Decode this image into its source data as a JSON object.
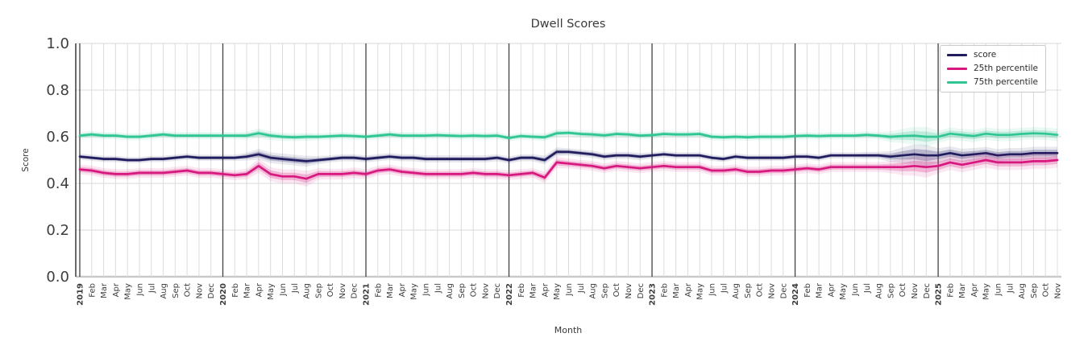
{
  "title": "Dwell Scores",
  "style": {
    "grid_color": "#dcdcdc",
    "hgrid_color": "#d9d9d9",
    "year_line_color": "#424242",
    "axis_color": "#3a3a3a",
    "bottom_spine_color": "#c9c9c9",
    "text_color": "#3d3d3d",
    "legend_border": "#cbcbcb"
  },
  "chart_data": {
    "type": "line",
    "title": "Dwell Scores",
    "xlabel": "Month",
    "ylabel": "Score",
    "ylim": [
      0.0,
      1.0
    ],
    "yticks": [
      0.0,
      0.2,
      0.4,
      0.6,
      0.8,
      1.0
    ],
    "grid": "on",
    "legend_position": "upper right",
    "categories": [
      "2019",
      "Feb",
      "Mar",
      "Apr",
      "May",
      "Jun",
      "Jul",
      "Aug",
      "Sep",
      "Oct",
      "Nov",
      "Dec",
      "2020",
      "Feb",
      "Mar",
      "Apr",
      "May",
      "Jun",
      "Jul",
      "Aug",
      "Sep",
      "Oct",
      "Nov",
      "Dec",
      "2021",
      "Feb",
      "Mar",
      "Apr",
      "May",
      "Jun",
      "Jul",
      "Aug",
      "Sep",
      "Oct",
      "Nov",
      "Dec",
      "2022",
      "Feb",
      "Mar",
      "Apr",
      "May",
      "Jun",
      "Jul",
      "Aug",
      "Sep",
      "Oct",
      "Nov",
      "Dec",
      "2023",
      "Feb",
      "Mar",
      "Apr",
      "May",
      "Jun",
      "Jul",
      "Aug",
      "Sep",
      "Oct",
      "Nov",
      "Dec",
      "2024",
      "Feb",
      "Mar",
      "Apr",
      "May",
      "Jun",
      "Jul",
      "Aug",
      "Sep",
      "Oct",
      "Nov",
      "Dec",
      "2025",
      "Feb",
      "Mar",
      "Apr",
      "May",
      "Jun",
      "Jul",
      "Aug",
      "Sep",
      "Oct",
      "Nov"
    ],
    "series": [
      {
        "name": "score",
        "color": "#201c5e",
        "values": [
          0.515,
          0.51,
          0.505,
          0.505,
          0.5,
          0.5,
          0.505,
          0.505,
          0.51,
          0.515,
          0.51,
          0.51,
          0.51,
          0.51,
          0.515,
          0.525,
          0.51,
          0.505,
          0.5,
          0.495,
          0.5,
          0.505,
          0.51,
          0.51,
          0.505,
          0.51,
          0.515,
          0.51,
          0.51,
          0.505,
          0.505,
          0.505,
          0.505,
          0.505,
          0.505,
          0.51,
          0.5,
          0.51,
          0.51,
          0.5,
          0.535,
          0.535,
          0.53,
          0.525,
          0.515,
          0.52,
          0.52,
          0.515,
          0.52,
          0.525,
          0.52,
          0.52,
          0.52,
          0.51,
          0.505,
          0.515,
          0.51,
          0.51,
          0.51,
          0.51,
          0.515,
          0.515,
          0.51,
          0.52,
          0.52,
          0.52,
          0.52,
          0.52,
          0.515,
          0.52,
          0.525,
          0.52,
          0.52,
          0.53,
          0.52,
          0.525,
          0.53,
          0.52,
          0.525,
          0.525,
          0.53,
          0.53,
          0.53
        ],
        "band": [
          0.007,
          0.007,
          0.007,
          0.007,
          0.007,
          0.007,
          0.007,
          0.007,
          0.007,
          0.007,
          0.007,
          0.007,
          0.007,
          0.007,
          0.009,
          0.012,
          0.012,
          0.012,
          0.012,
          0.012,
          0.009,
          0.008,
          0.008,
          0.008,
          0.008,
          0.008,
          0.008,
          0.008,
          0.008,
          0.008,
          0.008,
          0.008,
          0.008,
          0.008,
          0.008,
          0.008,
          0.008,
          0.008,
          0.008,
          0.01,
          0.01,
          0.008,
          0.008,
          0.008,
          0.008,
          0.008,
          0.008,
          0.008,
          0.007,
          0.007,
          0.007,
          0.007,
          0.007,
          0.007,
          0.007,
          0.007,
          0.007,
          0.007,
          0.007,
          0.007,
          0.007,
          0.007,
          0.007,
          0.007,
          0.007,
          0.007,
          0.008,
          0.008,
          0.012,
          0.018,
          0.022,
          0.024,
          0.016,
          0.015,
          0.015,
          0.014,
          0.014,
          0.014,
          0.014,
          0.014,
          0.014,
          0.014,
          0.014
        ]
      },
      {
        "name": "25th percentile",
        "color": "#d6187f",
        "values": [
          0.46,
          0.455,
          0.445,
          0.44,
          0.44,
          0.445,
          0.445,
          0.445,
          0.45,
          0.455,
          0.445,
          0.445,
          0.44,
          0.435,
          0.44,
          0.475,
          0.44,
          0.43,
          0.43,
          0.42,
          0.44,
          0.44,
          0.44,
          0.445,
          0.44,
          0.455,
          0.46,
          0.45,
          0.445,
          0.44,
          0.44,
          0.44,
          0.44,
          0.445,
          0.44,
          0.44,
          0.435,
          0.44,
          0.445,
          0.425,
          0.49,
          0.485,
          0.48,
          0.475,
          0.465,
          0.475,
          0.47,
          0.465,
          0.47,
          0.475,
          0.47,
          0.47,
          0.47,
          0.455,
          0.455,
          0.46,
          0.45,
          0.45,
          0.455,
          0.455,
          0.46,
          0.465,
          0.46,
          0.47,
          0.47,
          0.47,
          0.47,
          0.47,
          0.47,
          0.47,
          0.475,
          0.47,
          0.475,
          0.49,
          0.48,
          0.49,
          0.5,
          0.49,
          0.49,
          0.49,
          0.495,
          0.495,
          0.5
        ],
        "band": [
          0.011,
          0.011,
          0.011,
          0.011,
          0.011,
          0.011,
          0.011,
          0.011,
          0.011,
          0.011,
          0.011,
          0.011,
          0.011,
          0.011,
          0.012,
          0.016,
          0.016,
          0.016,
          0.016,
          0.018,
          0.013,
          0.012,
          0.012,
          0.012,
          0.011,
          0.011,
          0.011,
          0.011,
          0.011,
          0.011,
          0.011,
          0.011,
          0.011,
          0.011,
          0.011,
          0.011,
          0.011,
          0.011,
          0.011,
          0.013,
          0.013,
          0.011,
          0.011,
          0.011,
          0.011,
          0.011,
          0.011,
          0.011,
          0.011,
          0.011,
          0.011,
          0.011,
          0.011,
          0.011,
          0.011,
          0.011,
          0.011,
          0.011,
          0.011,
          0.011,
          0.011,
          0.011,
          0.011,
          0.011,
          0.011,
          0.011,
          0.011,
          0.011,
          0.014,
          0.018,
          0.022,
          0.024,
          0.017,
          0.017,
          0.017,
          0.017,
          0.017,
          0.017,
          0.017,
          0.017,
          0.017,
          0.017,
          0.017
        ]
      },
      {
        "name": "75th percentile",
        "color": "#2fc694",
        "values": [
          0.605,
          0.61,
          0.605,
          0.605,
          0.6,
          0.6,
          0.605,
          0.61,
          0.605,
          0.605,
          0.605,
          0.605,
          0.605,
          0.605,
          0.605,
          0.615,
          0.605,
          0.6,
          0.598,
          0.6,
          0.6,
          0.602,
          0.605,
          0.603,
          0.6,
          0.605,
          0.61,
          0.605,
          0.605,
          0.605,
          0.607,
          0.605,
          0.603,
          0.605,
          0.603,
          0.605,
          0.595,
          0.603,
          0.6,
          0.598,
          0.615,
          0.617,
          0.612,
          0.61,
          0.606,
          0.612,
          0.61,
          0.605,
          0.607,
          0.612,
          0.61,
          0.61,
          0.612,
          0.6,
          0.598,
          0.6,
          0.598,
          0.6,
          0.6,
          0.6,
          0.603,
          0.605,
          0.603,
          0.605,
          0.605,
          0.605,
          0.608,
          0.605,
          0.6,
          0.603,
          0.605,
          0.6,
          0.6,
          0.613,
          0.608,
          0.603,
          0.613,
          0.608,
          0.608,
          0.612,
          0.615,
          0.613,
          0.608
        ],
        "band": [
          0.008,
          0.008,
          0.008,
          0.008,
          0.008,
          0.008,
          0.008,
          0.008,
          0.008,
          0.008,
          0.008,
          0.008,
          0.008,
          0.008,
          0.009,
          0.011,
          0.01,
          0.009,
          0.009,
          0.009,
          0.008,
          0.008,
          0.008,
          0.008,
          0.008,
          0.008,
          0.008,
          0.008,
          0.008,
          0.008,
          0.008,
          0.008,
          0.008,
          0.008,
          0.008,
          0.008,
          0.008,
          0.008,
          0.008,
          0.009,
          0.009,
          0.008,
          0.008,
          0.008,
          0.008,
          0.008,
          0.008,
          0.008,
          0.008,
          0.008,
          0.008,
          0.008,
          0.008,
          0.008,
          0.008,
          0.008,
          0.008,
          0.008,
          0.008,
          0.008,
          0.008,
          0.008,
          0.008,
          0.008,
          0.008,
          0.008,
          0.008,
          0.008,
          0.012,
          0.016,
          0.02,
          0.022,
          0.014,
          0.014,
          0.014,
          0.014,
          0.014,
          0.014,
          0.014,
          0.014,
          0.014,
          0.014,
          0.014
        ]
      }
    ]
  }
}
